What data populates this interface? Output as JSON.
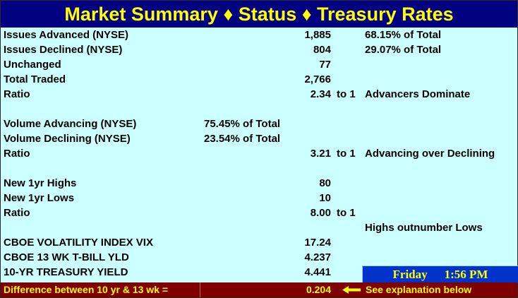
{
  "header": {
    "title": "Market Summary ♦ Status ♦ Treasury Rates"
  },
  "rows": [
    {
      "label": "Issues Advanced (NYSE)",
      "pct": "",
      "value": "1,885",
      "to": "",
      "note": "68.15% of Total"
    },
    {
      "label": "Issues Declined (NYSE)",
      "pct": "",
      "value": "804",
      "to": "",
      "note": "29.07% of Total"
    },
    {
      "label": "Unchanged",
      "pct": "",
      "value": "77",
      "to": "",
      "note": ""
    },
    {
      "label": "Total Traded",
      "pct": "",
      "value": "2,766",
      "to": "",
      "note": ""
    },
    {
      "label": "Ratio",
      "pct": "",
      "value": "2.34",
      "to": "to 1",
      "note": "Advancers Dominate"
    },
    {
      "label": "",
      "pct": "",
      "value": "",
      "to": "",
      "note": ""
    },
    {
      "label": "Volume Advancing (NYSE)",
      "pct": "75.45% of Total",
      "value": "",
      "to": "",
      "note": ""
    },
    {
      "label": "Volume Declining (NYSE)",
      "pct": "23.54% of Total",
      "value": "",
      "to": "",
      "note": ""
    },
    {
      "label": "Ratio",
      "pct": "",
      "value": "3.21",
      "to": "to 1",
      "note": "Advancing over Declining"
    },
    {
      "label": "",
      "pct": "",
      "value": "",
      "to": "",
      "note": ""
    },
    {
      "label": "New 1yr Highs",
      "pct": "",
      "value": "80",
      "to": "",
      "note": ""
    },
    {
      "label": "New 1yr Lows",
      "pct": "",
      "value": "10",
      "to": "",
      "note": ""
    },
    {
      "label": "Ratio",
      "pct": "",
      "value": "8.00",
      "to": "to 1",
      "note": ""
    },
    {
      "label": "",
      "pct": "",
      "value": "",
      "to": "",
      "note": "Highs outnumber Lows"
    },
    {
      "label": "CBOE VOLATILITY INDEX VIX",
      "pct": "",
      "value": "17.24",
      "to": "",
      "note": ""
    },
    {
      "label": "CBOE 13 WK T-BILL YLD",
      "pct": "",
      "value": "4.237",
      "to": "",
      "note": ""
    },
    {
      "label": "10-YR TREASURY YIELD",
      "pct": "",
      "value": "4.441",
      "to": "",
      "note": ""
    }
  ],
  "status": {
    "day": "Friday",
    "time": "1:56 PM"
  },
  "footer": {
    "label": "Difference between 10 yr & 13 wk =",
    "value": "0.204",
    "icon": "left-arrow-icon",
    "note": "See explanation below"
  },
  "colors": {
    "header_bg": "#000080",
    "header_text": "#ffff00",
    "body_bg": "#ccffff",
    "status_bg": "#0033cc",
    "footer_bg": "#800000"
  }
}
